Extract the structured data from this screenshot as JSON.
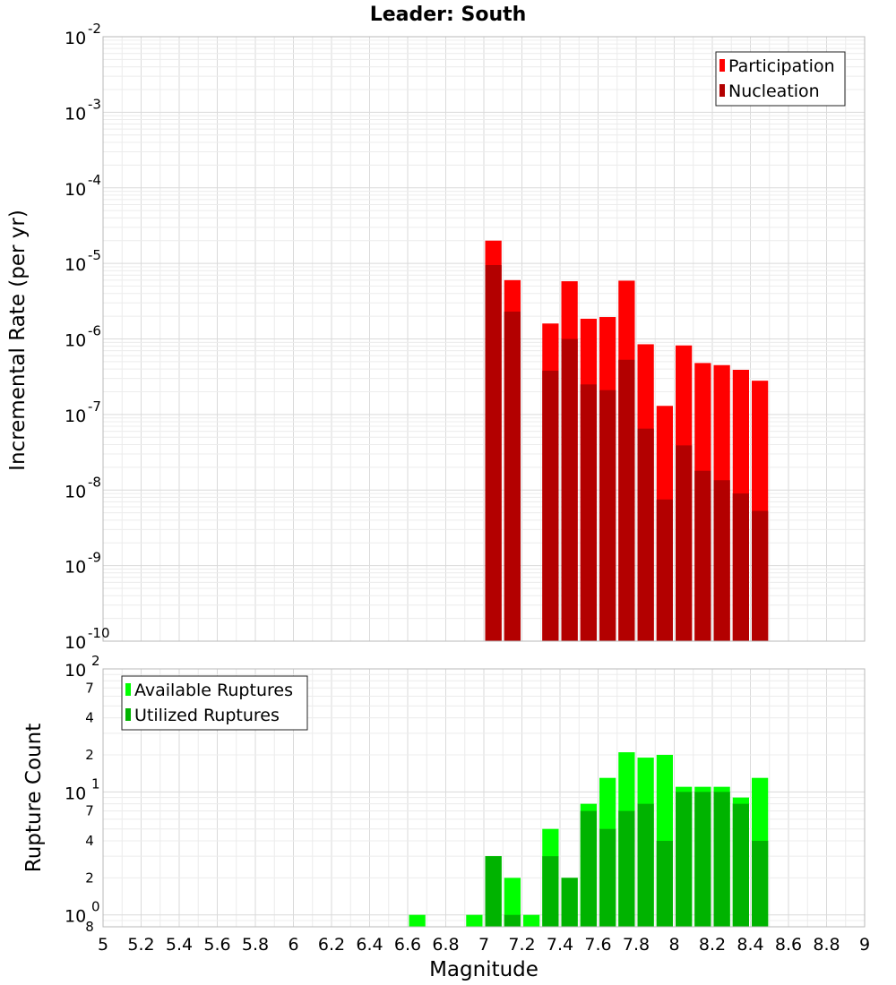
{
  "chart_data": [
    {
      "type": "bar",
      "title": "Leader: South",
      "ylabel": "Incremental Rate (per yr)",
      "xlabel": "",
      "yscale": "log",
      "ylim": [
        1e-10,
        0.01
      ],
      "xlim": [
        5,
        9
      ],
      "bin_width": 0.1,
      "y_tick_mantissas": [
        "10",
        "10",
        "10",
        "10",
        "10",
        "10",
        "10",
        "10",
        "10"
      ],
      "y_tick_exponents": [
        "-10",
        "-9",
        "-8",
        "-7",
        "-6",
        "-5",
        "-4",
        "-3",
        "-2"
      ],
      "legend": {
        "position": "top-right",
        "entries": [
          {
            "name": "Participation",
            "color": "#ff0000"
          },
          {
            "name": "Nucleation",
            "color": "#b30000"
          }
        ]
      },
      "series": [
        {
          "name": "Participation",
          "color": "#ff0000",
          "x": [
            7.05,
            7.15,
            7.35,
            7.45,
            7.55,
            7.65,
            7.75,
            7.85,
            7.95,
            8.05,
            8.15,
            8.25,
            8.35,
            8.45
          ],
          "values": [
            2e-05,
            6e-06,
            1.6e-06,
            5.8e-06,
            1.85e-06,
            1.95e-06,
            5.9e-06,
            8.5e-07,
            1.3e-07,
            8.2e-07,
            4.8e-07,
            4.5e-07,
            3.9e-07,
            2.8e-07
          ]
        },
        {
          "name": "Nucleation",
          "color": "#b30000",
          "x": [
            7.05,
            7.15,
            7.35,
            7.45,
            7.55,
            7.65,
            7.75,
            7.85,
            7.95,
            8.05,
            8.15,
            8.25,
            8.35,
            8.45
          ],
          "values": [
            9.5e-06,
            2.3e-06,
            3.8e-07,
            1e-06,
            2.5e-07,
            2.1e-07,
            5.3e-07,
            6.5e-08,
            7.5e-09,
            3.9e-08,
            1.8e-08,
            1.35e-08,
            9e-09,
            5.3e-09
          ]
        }
      ]
    },
    {
      "type": "bar",
      "title": "",
      "ylabel": "Rupture Count",
      "xlabel": "Magnitude",
      "yscale": "log",
      "ylim": [
        0.8,
        100
      ],
      "xlim": [
        5,
        9
      ],
      "bin_width": 0.1,
      "x_ticks": [
        "5",
        "5.2",
        "5.4",
        "5.6",
        "5.8",
        "6",
        "6.2",
        "6.4",
        "6.6",
        "6.8",
        "7",
        "7.2",
        "7.4",
        "7.6",
        "7.8",
        "8",
        "8.2",
        "8.4",
        "8.6",
        "8.8",
        "9"
      ],
      "y_major_mantissas": [
        "10",
        "10",
        "10"
      ],
      "y_major_exponents": [
        "0",
        "1",
        "2"
      ],
      "y_minor_labels": [
        "8",
        "2",
        "4",
        "7",
        "2",
        "4",
        "7"
      ],
      "legend": {
        "position": "top-left",
        "entries": [
          {
            "name": "Available Ruptures",
            "color": "#00ff00"
          },
          {
            "name": "Utilized Ruptures",
            "color": "#00b300"
          }
        ]
      },
      "series": [
        {
          "name": "Available Ruptures",
          "color": "#00ff00",
          "x": [
            6.65,
            6.95,
            7.05,
            7.15,
            7.25,
            7.35,
            7.45,
            7.55,
            7.65,
            7.75,
            7.85,
            7.95,
            8.05,
            8.15,
            8.25,
            8.35,
            8.45
          ],
          "values": [
            1,
            1,
            3,
            2,
            1,
            5,
            2,
            8,
            13,
            21,
            19,
            20,
            11,
            11,
            11,
            9,
            13
          ]
        },
        {
          "name": "Utilized Ruptures",
          "color": "#00b300",
          "x": [
            6.65,
            6.95,
            7.05,
            7.15,
            7.25,
            7.35,
            7.45,
            7.55,
            7.65,
            7.75,
            7.85,
            7.95,
            8.05,
            8.15,
            8.25,
            8.35,
            8.45
          ],
          "values": [
            0,
            0,
            3,
            1,
            0,
            3,
            2,
            7,
            5,
            7,
            8,
            4,
            10,
            10,
            10,
            8,
            4
          ]
        }
      ]
    }
  ]
}
